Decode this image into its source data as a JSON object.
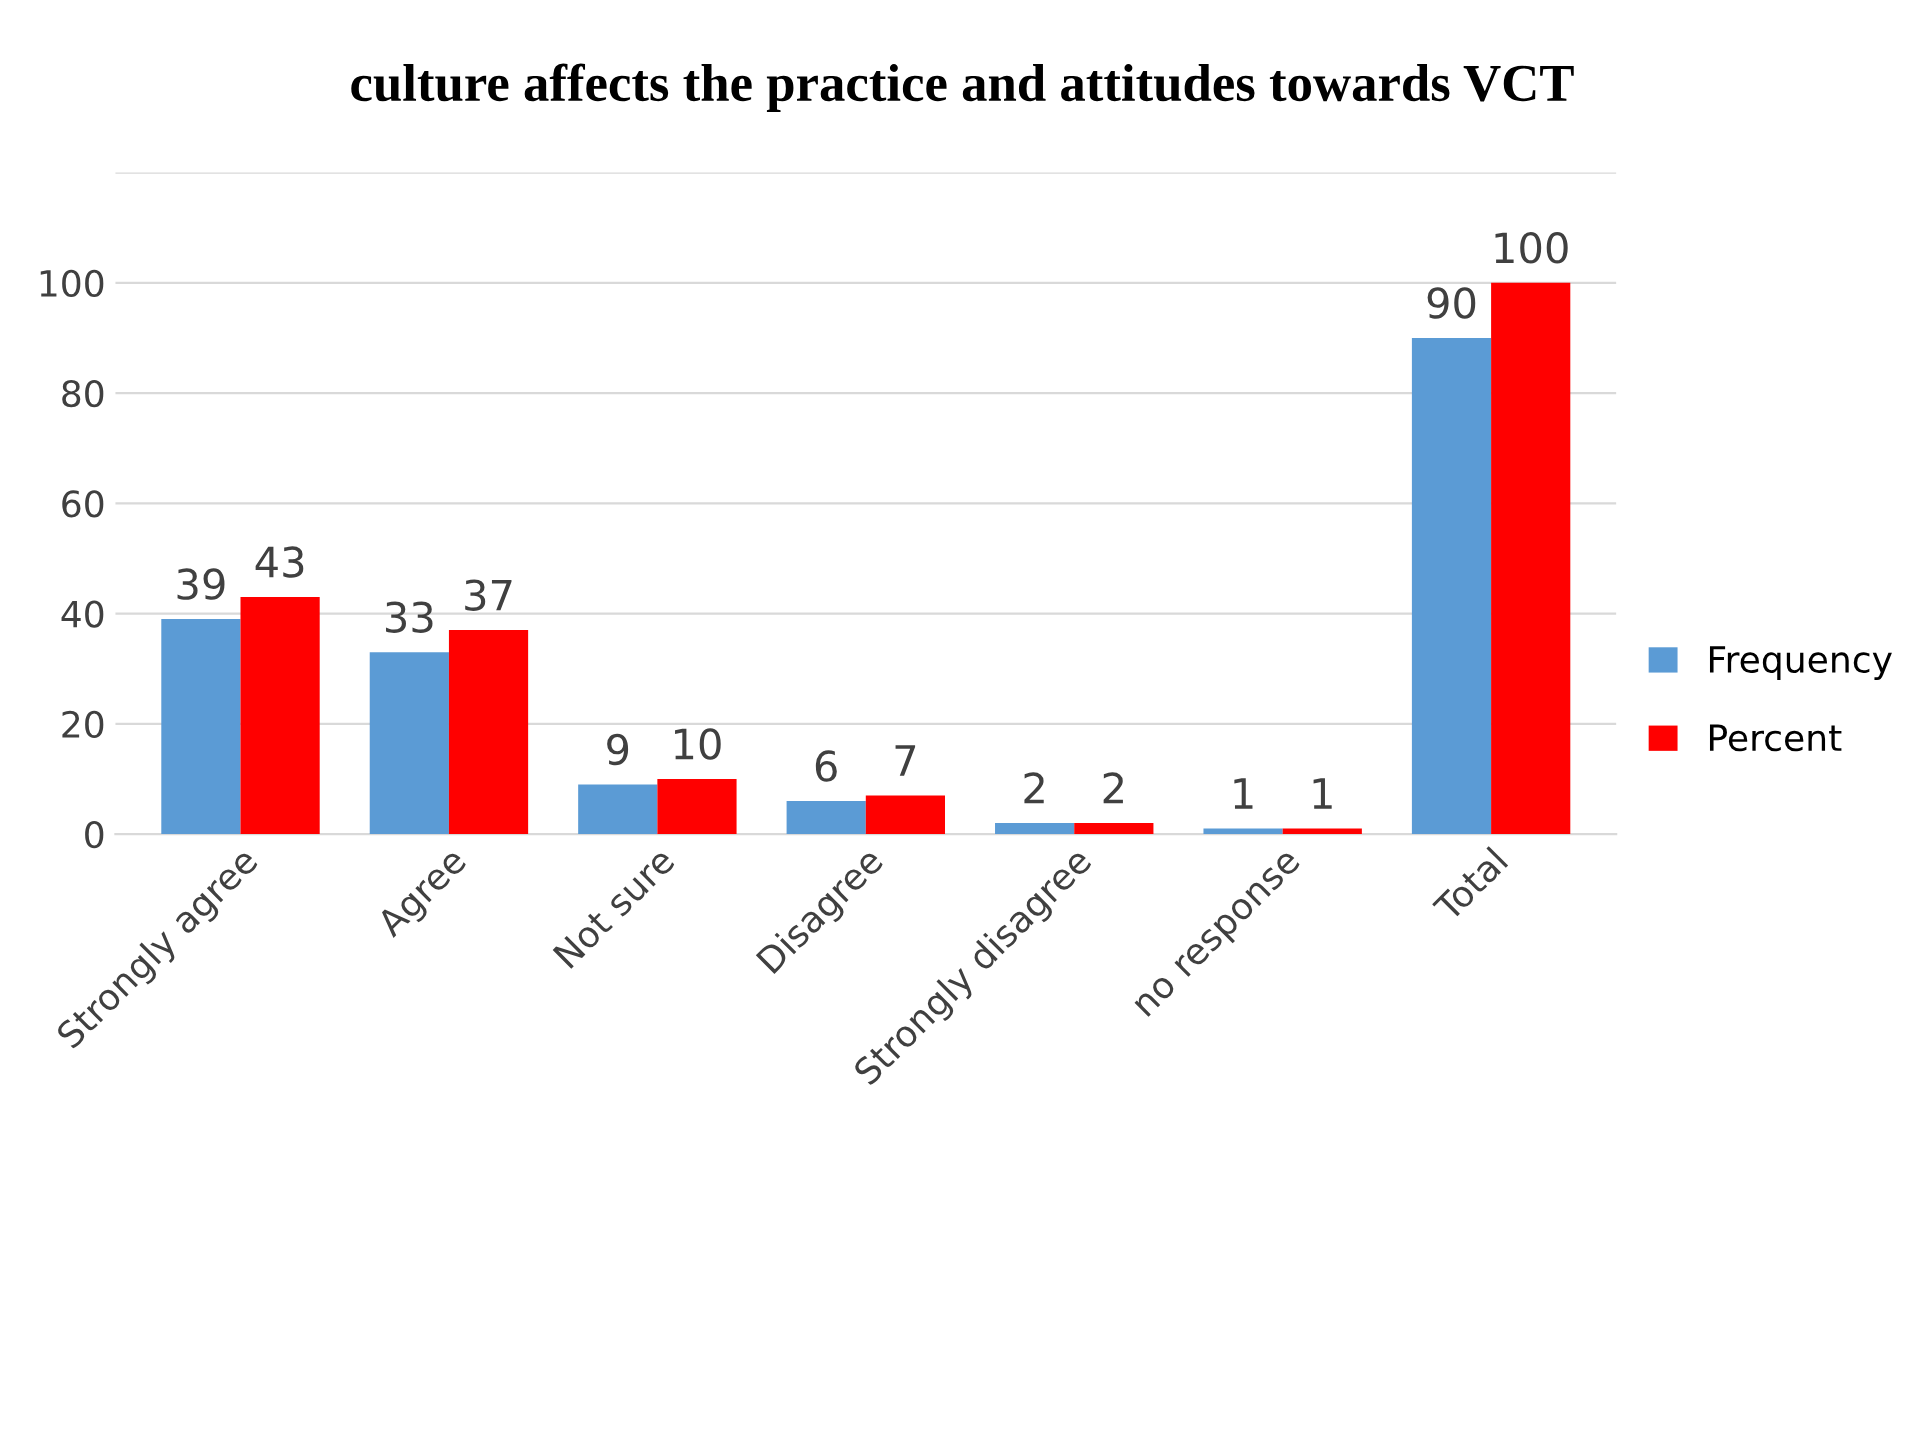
{
  "chart_data": {
    "type": "bar",
    "title": "culture affects the practice and attitudes towards VCT",
    "categories": [
      "Strongly agree",
      "Agree",
      "Not sure",
      "Disagree",
      "Strongly disagree",
      "no response",
      "Total"
    ],
    "series": [
      {
        "name": "Frequency",
        "color": "#5b9bd5",
        "values": [
          39,
          33,
          9,
          6,
          2,
          1,
          90
        ]
      },
      {
        "name": "Percent",
        "color": "#ff0000",
        "values": [
          43,
          37,
          10,
          7,
          2,
          1,
          100
        ]
      }
    ],
    "ylim": [
      0,
      120
    ],
    "yticks": [
      0,
      20,
      40,
      60,
      80,
      100,
      {
        "value": 120,
        "label": null
      }
    ],
    "grid": "y",
    "legend": "right",
    "data_labels": true
  }
}
